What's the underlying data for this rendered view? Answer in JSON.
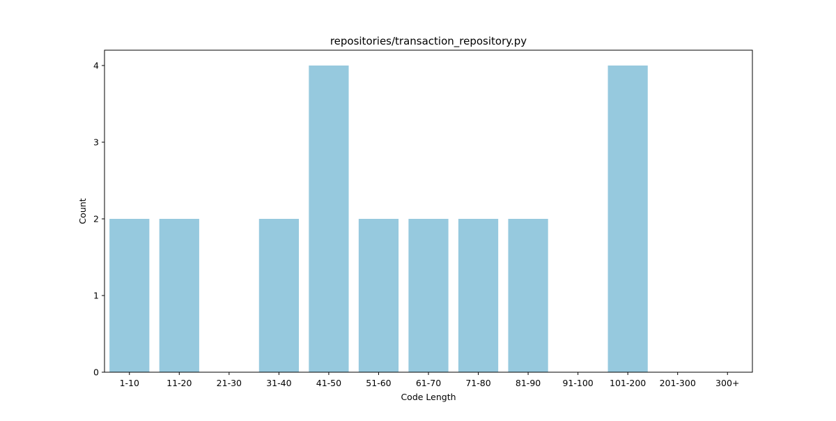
{
  "chart_data": {
    "type": "bar",
    "title": "repositories/transaction_repository.py",
    "xlabel": "Code Length",
    "ylabel": "Count",
    "categories": [
      "1-10",
      "11-20",
      "21-30",
      "31-40",
      "41-50",
      "51-60",
      "61-70",
      "71-80",
      "81-90",
      "91-100",
      "101-200",
      "201-300",
      "300+"
    ],
    "values": [
      2,
      2,
      0,
      2,
      4,
      2,
      2,
      2,
      2,
      0,
      4,
      0,
      0
    ],
    "yticks": [
      "0",
      "1",
      "2",
      "3",
      "4"
    ],
    "ylim": [
      0,
      4.2
    ],
    "bar_color": "#96c9de",
    "grid": false,
    "legend": "none"
  }
}
